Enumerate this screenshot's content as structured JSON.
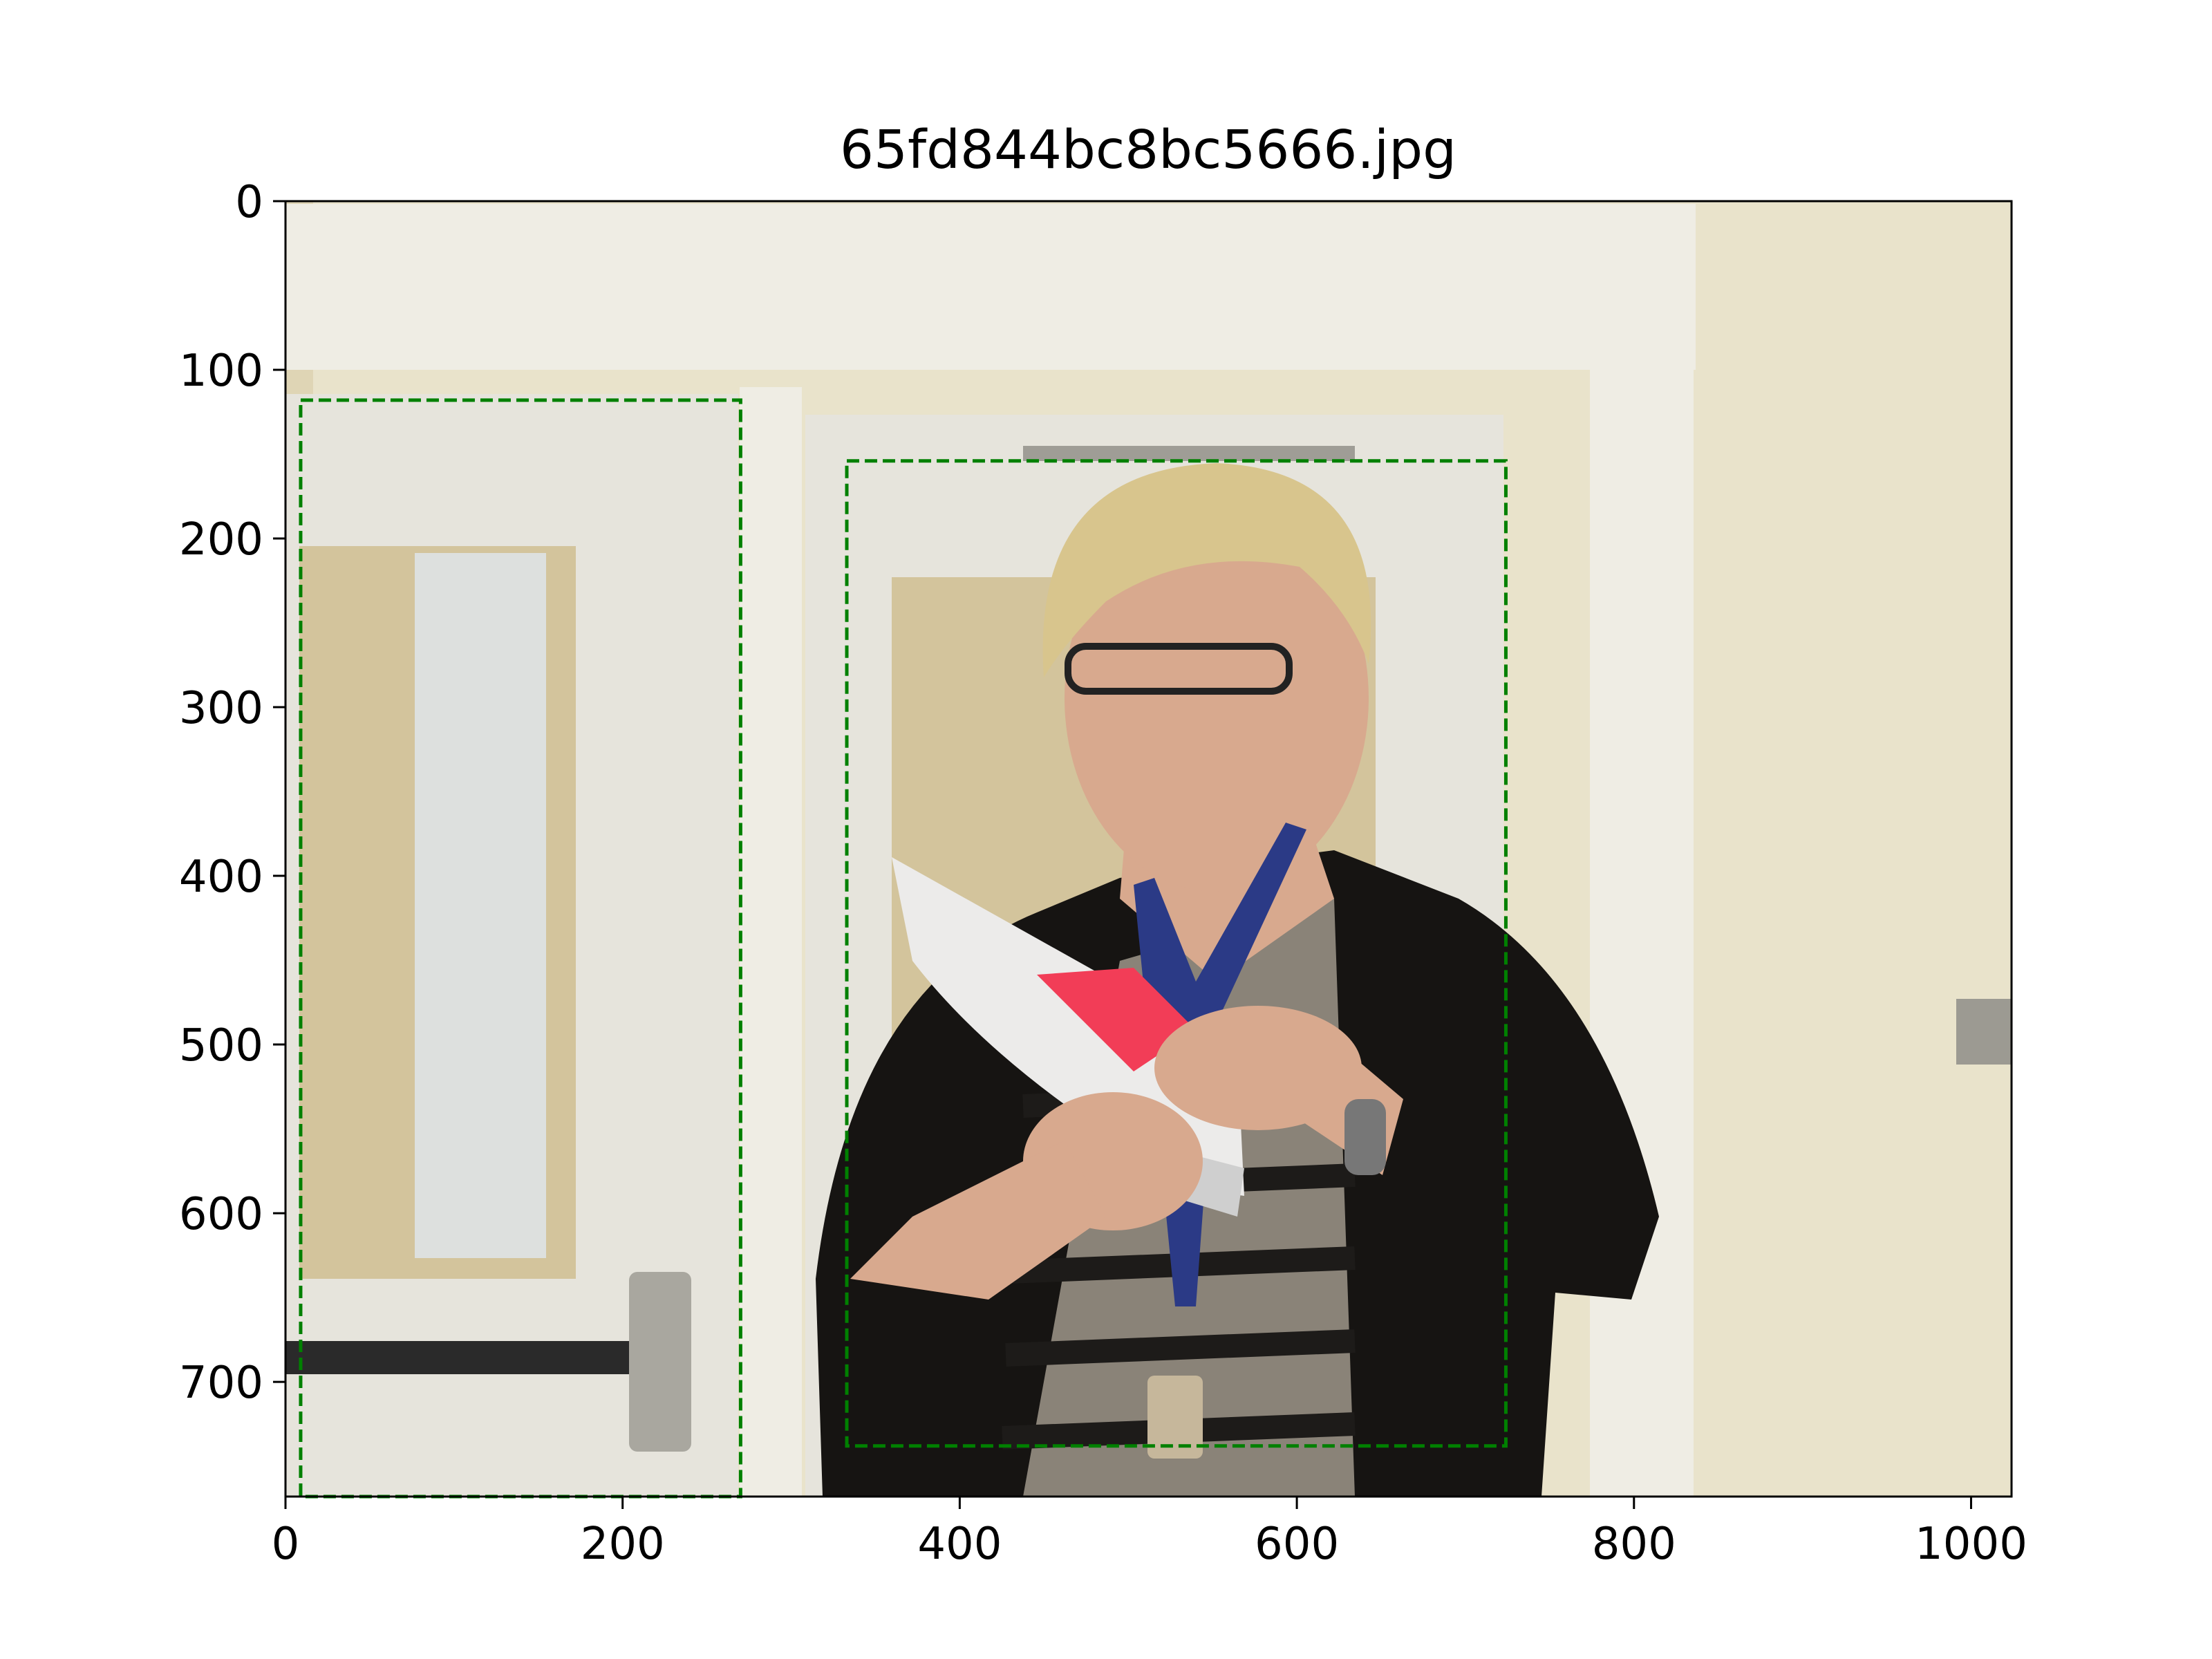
{
  "chart_data": {
    "type": "image",
    "title": "65fd844bc8bc5666.jpg",
    "xlabel": "",
    "ylabel": "",
    "xlim": [
      0,
      1024
    ],
    "ylim": [
      768,
      0
    ],
    "x_ticks": [
      0,
      200,
      400,
      600,
      800,
      1000
    ],
    "y_ticks": [
      0,
      100,
      200,
      300,
      400,
      500,
      600,
      700
    ],
    "grid": false,
    "box_color": "#008000",
    "box_style": "dashed",
    "boxes": [
      {
        "x0": 9,
        "y0": 118,
        "x1": 270,
        "y1": 768
      },
      {
        "x0": 333,
        "y0": 154,
        "x1": 724,
        "y1": 738
      }
    ]
  },
  "scene": {
    "wall_color": "#e9e3cb",
    "door_color": "#e6e4dc",
    "frame_color": "#efede4",
    "glass_color": "#d3c49c",
    "sweater_color": "#161412",
    "skin_color": "#d8a98e",
    "hair_color": "#d8c58d",
    "lanyard_color": "#2b3a86",
    "paper_color": "#ecebea",
    "card_color": "#f23d57"
  }
}
